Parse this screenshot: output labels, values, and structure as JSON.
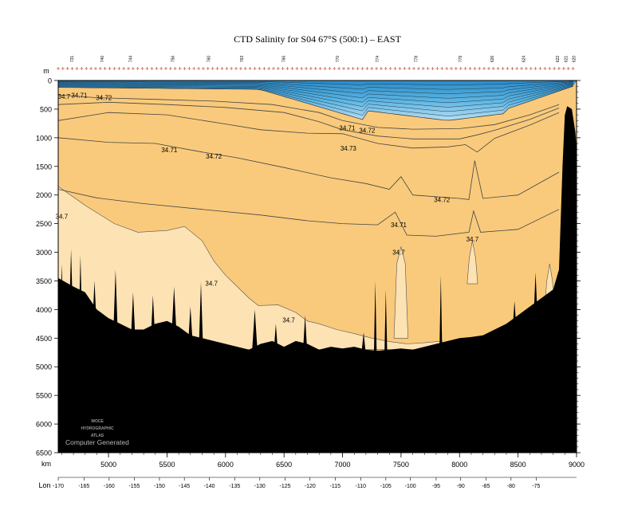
{
  "chart_data": {
    "type": "contour",
    "title": "CTD Salinity for S04 67°S (500:1) – EAST",
    "depth_unit": "m",
    "distance_unit": "km",
    "lon_label": "Lon",
    "watermark": [
      "WOCE",
      "HYDROGRAPHIC",
      "ATLAS"
    ],
    "computer_generated": "Computer Generated",
    "x_range_km": [
      4570,
      9000
    ],
    "y_range_m": [
      0,
      6500
    ],
    "y_ticks": [
      0,
      500,
      1000,
      1500,
      2000,
      2500,
      3000,
      3500,
      4000,
      4500,
      5000,
      5500,
      6000,
      6500
    ],
    "x_ticks_km": [
      5000,
      5500,
      6000,
      6500,
      7000,
      7500,
      8000,
      8500,
      9000
    ],
    "lon_ticks": [
      -170,
      -165,
      -160,
      -155,
      -150,
      -145,
      -140,
      -135,
      -130,
      -125,
      -120,
      -115,
      -110,
      -105,
      -100,
      -95,
      -90,
      -85,
      -80,
      -75
    ],
    "lon_ticks_km": [
      4570,
      4790,
      5005,
      5220,
      5435,
      5648,
      5862,
      6078,
      6293,
      6509,
      6722,
      6937,
      7155,
      7370,
      7580,
      7800,
      8010,
      8225,
      8440,
      8655
    ],
    "stations": [
      {
        "label": "731",
        "km": 4700
      },
      {
        "label": "740",
        "km": 4960
      },
      {
        "label": "744",
        "km": 5200
      },
      {
        "label": "756",
        "km": 5560
      },
      {
        "label": "760",
        "km": 5870
      },
      {
        "label": "763",
        "km": 6150
      },
      {
        "label": "766",
        "km": 6510
      },
      {
        "label": "770",
        "km": 6970
      },
      {
        "label": "774",
        "km": 7310
      },
      {
        "label": "778",
        "km": 7640
      },
      {
        "label": "779",
        "km": 8020
      },
      {
        "label": "626",
        "km": 8290
      },
      {
        "label": "624",
        "km": 8560
      },
      {
        "label": "622",
        "km": 8850
      },
      {
        "label": "621",
        "km": 8920
      },
      {
        "label": "620",
        "km": 8990
      }
    ],
    "fill_colors": {
      "deep_water_light": "#fde2b4",
      "mid_water": "#f9ca7b",
      "surface_blue": "#4aa8d8",
      "surface_light_blue": "#a6d6ee",
      "bottom": "#000000"
    },
    "contour_levels": [
      34.7,
      34.71,
      34.72,
      34.73
    ],
    "contour_lines": [
      {
        "name": "34.71",
        "points": [
          [
            4570,
            250
          ],
          [
            4900,
            300
          ],
          [
            5400,
            330
          ],
          [
            5900,
            360
          ],
          [
            6400,
            420
          ],
          [
            6800,
            560
          ],
          [
            7000,
            700
          ],
          [
            7300,
            820
          ],
          [
            7600,
            850
          ],
          [
            8000,
            840
          ],
          [
            8300,
            770
          ],
          [
            8600,
            600
          ],
          [
            8850,
            420
          ]
        ]
      },
      {
        "name": "34.72",
        "points": [
          [
            4570,
            420
          ],
          [
            5000,
            380
          ],
          [
            5500,
            420
          ],
          [
            6000,
            470
          ],
          [
            6500,
            560
          ],
          [
            6800,
            720
          ],
          [
            7000,
            860
          ],
          [
            7300,
            970
          ],
          [
            7600,
            1020
          ],
          [
            8000,
            1020
          ],
          [
            8150,
            950
          ],
          [
            8300,
            870
          ],
          [
            8600,
            680
          ],
          [
            8850,
            480
          ]
        ]
      },
      {
        "name": "34.73",
        "points": [
          [
            4570,
            700
          ],
          [
            5000,
            560
          ],
          [
            5500,
            600
          ],
          [
            6000,
            760
          ],
          [
            6300,
            860
          ],
          [
            6700,
            920
          ],
          [
            7000,
            930
          ],
          [
            7300,
            1100
          ],
          [
            7600,
            1180
          ],
          [
            7900,
            1160
          ],
          [
            8050,
            1120
          ],
          [
            8150,
            1250
          ],
          [
            8300,
            1010
          ],
          [
            8600,
            780
          ],
          [
            8850,
            560
          ]
        ]
      },
      {
        "name": "34.72",
        "points": [
          [
            4570,
            1000
          ],
          [
            5000,
            1080
          ],
          [
            5400,
            1100
          ],
          [
            5800,
            1250
          ],
          [
            6100,
            1350
          ],
          [
            6500,
            1520
          ],
          [
            6900,
            1700
          ],
          [
            7200,
            1800
          ],
          [
            7400,
            1900
          ],
          [
            7500,
            1680
          ],
          [
            7600,
            2000
          ],
          [
            8000,
            2060
          ],
          [
            8080,
            2080
          ],
          [
            8130,
            1400
          ],
          [
            8200,
            2060
          ],
          [
            8500,
            2000
          ],
          [
            8850,
            1600
          ]
        ]
      },
      {
        "name": "34.71",
        "points": [
          [
            4570,
            1900
          ],
          [
            4900,
            2050
          ],
          [
            5300,
            2150
          ],
          [
            5800,
            2250
          ],
          [
            6300,
            2350
          ],
          [
            6700,
            2450
          ],
          [
            7000,
            2500
          ],
          [
            7300,
            2520
          ],
          [
            7450,
            2300
          ],
          [
            7550,
            2700
          ],
          [
            7800,
            2720
          ],
          [
            8080,
            2650
          ],
          [
            8120,
            2280
          ],
          [
            8180,
            2650
          ],
          [
            8500,
            2600
          ],
          [
            8850,
            2250
          ]
        ]
      }
    ],
    "contour_labels": [
      {
        "text": "34.7",
        "km": 4620,
        "m": 280
      },
      {
        "text": "34.71",
        "km": 4750,
        "m": 260
      },
      {
        "text": "34.72",
        "km": 4960,
        "m": 300
      },
      {
        "text": "34.71",
        "km": 5520,
        "m": 1210
      },
      {
        "text": "34.72",
        "km": 5900,
        "m": 1320
      },
      {
        "text": "34.71",
        "km": 7040,
        "m": 830
      },
      {
        "text": "34.72",
        "km": 7210,
        "m": 870
      },
      {
        "text": "34.73",
        "km": 7050,
        "m": 1180
      },
      {
        "text": "34.72",
        "km": 7850,
        "m": 2080
      },
      {
        "text": "34.71",
        "km": 7480,
        "m": 2520
      },
      {
        "text": "34.7",
        "km": 4600,
        "m": 2370
      },
      {
        "text": "34.7",
        "km": 7480,
        "m": 3000
      },
      {
        "text": "34.7",
        "km": 8110,
        "m": 2770
      },
      {
        "text": "34.7",
        "km": 5880,
        "m": 3540
      },
      {
        "text": "34.7",
        "km": 6540,
        "m": 4180
      }
    ],
    "region_light": [
      [
        4570,
        1850
      ],
      [
        4800,
        2180
      ],
      [
        5050,
        2500
      ],
      [
        5250,
        2650
      ],
      [
        5500,
        2620
      ],
      [
        5650,
        2550
      ],
      [
        5800,
        2800
      ],
      [
        5900,
        3150
      ],
      [
        6000,
        3400
      ],
      [
        6100,
        3600
      ],
      [
        6200,
        3800
      ],
      [
        6280,
        3930
      ],
      [
        6450,
        3920
      ],
      [
        6600,
        4050
      ],
      [
        6700,
        4200
      ],
      [
        6800,
        4250
      ],
      [
        6950,
        4350
      ],
      [
        7100,
        4420
      ],
      [
        7250,
        4500
      ],
      [
        7400,
        4560
      ],
      [
        7550,
        4600
      ],
      [
        7700,
        4580
      ],
      [
        7850,
        4550
      ],
      [
        7850,
        4700
      ],
      [
        4570,
        4700
      ]
    ],
    "bumps_light": [
      {
        "km_center": 7500,
        "top_m": 2900,
        "half_width_km": 60,
        "bottom_m": 4500
      },
      {
        "km_center": 8110,
        "top_m": 2800,
        "half_width_km": 45,
        "bottom_m": 3550
      },
      {
        "km_center": 8770,
        "top_m": 3200,
        "half_width_km": 40,
        "bottom_m": 3900
      }
    ],
    "bathymetry": [
      [
        4570,
        3450
      ],
      [
        4700,
        3600
      ],
      [
        4800,
        3700
      ],
      [
        4900,
        4000
      ],
      [
        5000,
        4150
      ],
      [
        5100,
        4250
      ],
      [
        5200,
        4350
      ],
      [
        5300,
        4350
      ],
      [
        5400,
        4250
      ],
      [
        5500,
        4200
      ],
      [
        5600,
        4300
      ],
      [
        5700,
        4450
      ],
      [
        5800,
        4500
      ],
      [
        5900,
        4550
      ],
      [
        6000,
        4600
      ],
      [
        6100,
        4650
      ],
      [
        6200,
        4700
      ],
      [
        6300,
        4600
      ],
      [
        6400,
        4550
      ],
      [
        6500,
        4650
      ],
      [
        6600,
        4550
      ],
      [
        6700,
        4600
      ],
      [
        6800,
        4700
      ],
      [
        6900,
        4650
      ],
      [
        7000,
        4680
      ],
      [
        7100,
        4650
      ],
      [
        7200,
        4700
      ],
      [
        7300,
        4720
      ],
      [
        7400,
        4700
      ],
      [
        7500,
        4680
      ],
      [
        7600,
        4700
      ],
      [
        7700,
        4650
      ],
      [
        7800,
        4600
      ],
      [
        7900,
        4550
      ],
      [
        8000,
        4500
      ],
      [
        8100,
        4480
      ],
      [
        8200,
        4450
      ],
      [
        8300,
        4350
      ],
      [
        8400,
        4250
      ],
      [
        8500,
        4100
      ],
      [
        8600,
        3950
      ],
      [
        8700,
        3800
      ],
      [
        8800,
        3650
      ],
      [
        8850,
        3300
      ],
      [
        8880,
        1500
      ],
      [
        8900,
        600
      ],
      [
        8920,
        450
      ],
      [
        8960,
        500
      ],
      [
        8990,
        900
      ],
      [
        9000,
        1200
      ]
    ],
    "spikes": [
      {
        "km": 4600,
        "top": 3200,
        "w": 20
      },
      {
        "km": 4680,
        "top": 2950,
        "w": 25
      },
      {
        "km": 4760,
        "top": 3050,
        "w": 20
      },
      {
        "km": 4880,
        "top": 3500,
        "w": 30
      },
      {
        "km": 5060,
        "top": 3300,
        "w": 25
      },
      {
        "km": 5210,
        "top": 3700,
        "w": 25
      },
      {
        "km": 5380,
        "top": 3750,
        "w": 25
      },
      {
        "km": 5560,
        "top": 3600,
        "w": 30
      },
      {
        "km": 5700,
        "top": 3950,
        "w": 25
      },
      {
        "km": 5790,
        "top": 3520,
        "w": 20
      },
      {
        "km": 6250,
        "top": 4000,
        "w": 25
      },
      {
        "km": 6430,
        "top": 4250,
        "w": 20
      },
      {
        "km": 6680,
        "top": 4100,
        "w": 20
      },
      {
        "km": 7180,
        "top": 4400,
        "w": 20
      },
      {
        "km": 7280,
        "top": 3500,
        "w": 12
      },
      {
        "km": 7370,
        "top": 3650,
        "w": 12
      },
      {
        "km": 7840,
        "top": 3400,
        "w": 12
      },
      {
        "km": 8470,
        "top": 3850,
        "w": 30
      },
      {
        "km": 8650,
        "top": 3350,
        "w": 30
      }
    ]
  }
}
